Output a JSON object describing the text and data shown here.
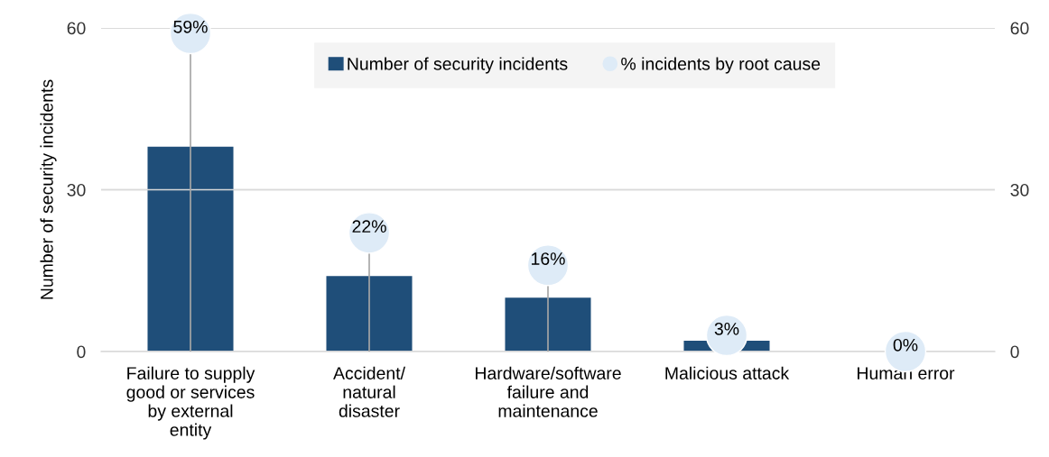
{
  "chart_data": {
    "type": "bar",
    "categories": [
      "Failure to supply\ngood or services\nby external\nentity",
      "Accident/\nnatural\ndisaster",
      "Hardware/software\nfailure and\nmaintenance",
      "Malicious attack",
      "Human error"
    ],
    "ylabel": "Number of security incidents",
    "ylim": [
      0,
      60
    ],
    "yticks": [
      0,
      30,
      60
    ],
    "y2lim": [
      0,
      60
    ],
    "y2ticks": [
      0,
      30,
      60
    ],
    "grid": "y",
    "legend": "top",
    "series": [
      {
        "name": "Number of security incidents",
        "color": "#1f4e79",
        "values": [
          38,
          14,
          10,
          2,
          0
        ]
      },
      {
        "name": "% incidents by root cause",
        "type": "lollipop",
        "axis": "y2",
        "color": "#deebf7",
        "values": [
          59,
          22,
          16,
          3,
          0
        ],
        "value_labels": [
          "59%",
          "22%",
          "16%",
          "3%",
          "0%"
        ]
      }
    ]
  }
}
